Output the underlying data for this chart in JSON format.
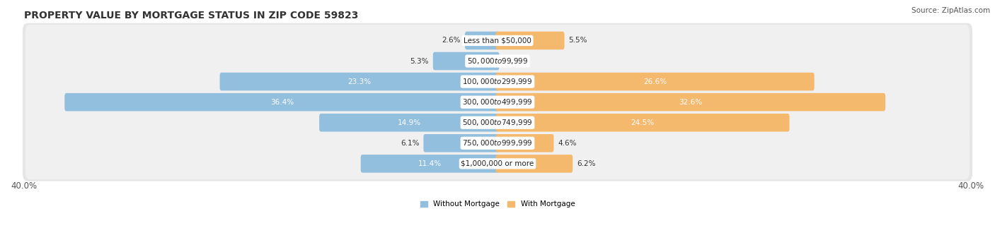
{
  "title": "PROPERTY VALUE BY MORTGAGE STATUS IN ZIP CODE 59823",
  "source": "Source: ZipAtlas.com",
  "categories": [
    "Less than $50,000",
    "$50,000 to $99,999",
    "$100,000 to $299,999",
    "$300,000 to $499,999",
    "$500,000 to $749,999",
    "$750,000 to $999,999",
    "$1,000,000 or more"
  ],
  "without_mortgage": [
    2.6,
    5.3,
    23.3,
    36.4,
    14.9,
    6.1,
    11.4
  ],
  "with_mortgage": [
    5.5,
    0.0,
    26.6,
    32.6,
    24.5,
    4.6,
    6.2
  ],
  "blue_color": "#92bfde",
  "orange_color": "#f5b96e",
  "bg_row_color": "#e6e6e6",
  "bg_row_inner_color": "#f0f0f0",
  "axis_limit": 40.0,
  "legend_labels": [
    "Without Mortgage",
    "With Mortgage"
  ],
  "title_fontsize": 10,
  "source_fontsize": 7.5,
  "bar_label_fontsize": 7.5,
  "cat_label_fontsize": 7.5,
  "axis_label_fontsize": 8.5
}
